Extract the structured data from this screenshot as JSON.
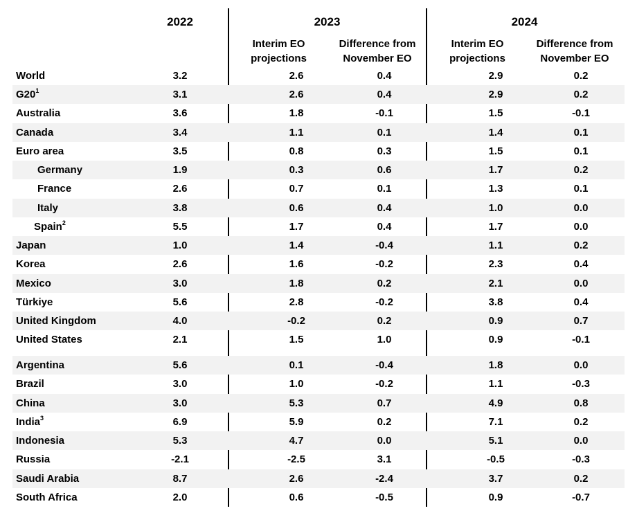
{
  "headers": {
    "year_2022": "2022",
    "year_2023": "2023",
    "year_2024": "2024",
    "interim_eo": "Interim EO projections",
    "difference": "Difference from November EO"
  },
  "rows": [
    {
      "name": "World",
      "sup": "",
      "v2022": "3.2",
      "p2023": "2.6",
      "d2023": "0.4",
      "p2024": "2.9",
      "d2024": "0.2"
    },
    {
      "name": "G20",
      "sup": "1",
      "v2022": "3.1",
      "p2023": "2.6",
      "d2023": "0.4",
      "p2024": "2.9",
      "d2024": "0.2"
    },
    {
      "name": "Australia",
      "sup": "",
      "v2022": "3.6",
      "p2023": "1.8",
      "d2023": "-0.1",
      "p2024": "1.5",
      "d2024": "-0.1"
    },
    {
      "name": "Canada",
      "sup": "",
      "v2022": "3.4",
      "p2023": "1.1",
      "d2023": "0.1",
      "p2024": "1.4",
      "d2024": "0.1"
    },
    {
      "name": "Euro area",
      "sup": "",
      "v2022": "3.5",
      "p2023": "0.8",
      "d2023": "0.3",
      "p2024": "1.5",
      "d2024": "0.1"
    },
    {
      "name": "Germany",
      "sup": "",
      "v2022": "1.9",
      "p2023": "0.3",
      "d2023": "0.6",
      "p2024": "1.7",
      "d2024": "0.2"
    },
    {
      "name": "France",
      "sup": "",
      "v2022": "2.6",
      "p2023": "0.7",
      "d2023": "0.1",
      "p2024": "1.3",
      "d2024": "0.1"
    },
    {
      "name": "Italy",
      "sup": "",
      "v2022": "3.8",
      "p2023": "0.6",
      "d2023": "0.4",
      "p2024": "1.0",
      "d2024": "0.0"
    },
    {
      "name": "Spain",
      "sup": "2",
      "v2022": "5.5",
      "p2023": "1.7",
      "d2023": "0.4",
      "p2024": "1.7",
      "d2024": "0.0"
    },
    {
      "name": "Japan",
      "sup": "",
      "v2022": "1.0",
      "p2023": "1.4",
      "d2023": "-0.4",
      "p2024": "1.1",
      "d2024": "0.2"
    },
    {
      "name": "Korea",
      "sup": "",
      "v2022": "2.6",
      "p2023": "1.6",
      "d2023": "-0.2",
      "p2024": "2.3",
      "d2024": "0.4"
    },
    {
      "name": "Mexico",
      "sup": "",
      "v2022": "3.0",
      "p2023": "1.8",
      "d2023": "0.2",
      "p2024": "2.1",
      "d2024": "0.0"
    },
    {
      "name": "Türkiye",
      "sup": "",
      "v2022": "5.6",
      "p2023": "2.8",
      "d2023": "-0.2",
      "p2024": "3.8",
      "d2024": "0.4"
    },
    {
      "name": "United Kingdom",
      "sup": "",
      "v2022": "4.0",
      "p2023": "-0.2",
      "d2023": "0.2",
      "p2024": "0.9",
      "d2024": "0.7"
    },
    {
      "name": "United States",
      "sup": "",
      "v2022": "2.1",
      "p2023": "1.5",
      "d2023": "1.0",
      "p2024": "0.9",
      "d2024": "-0.1"
    },
    {
      "name": "Argentina",
      "sup": "",
      "v2022": "5.6",
      "p2023": "0.1",
      "d2023": "-0.4",
      "p2024": "1.8",
      "d2024": "0.0"
    },
    {
      "name": "Brazil",
      "sup": "",
      "v2022": "3.0",
      "p2023": "1.0",
      "d2023": "-0.2",
      "p2024": "1.1",
      "d2024": "-0.3"
    },
    {
      "name": "China",
      "sup": "",
      "v2022": "3.0",
      "p2023": "5.3",
      "d2023": "0.7",
      "p2024": "4.9",
      "d2024": "0.8"
    },
    {
      "name": "India",
      "sup": "3",
      "v2022": "6.9",
      "p2023": "5.9",
      "d2023": "0.2",
      "p2024": "7.1",
      "d2024": "0.2"
    },
    {
      "name": "Indonesia",
      "sup": "",
      "v2022": "5.3",
      "p2023": "4.7",
      "d2023": "0.0",
      "p2024": "5.1",
      "d2024": "0.0"
    },
    {
      "name": "Russia",
      "sup": "",
      "v2022": "-2.1",
      "p2023": "-2.5",
      "d2023": "3.1",
      "p2024": "-0.5",
      "d2024": "-0.3"
    },
    {
      "name": "Saudi Arabia",
      "sup": "",
      "v2022": "8.7",
      "p2023": "2.6",
      "d2023": "-2.4",
      "p2024": "3.7",
      "d2024": "0.2"
    },
    {
      "name": "South Africa",
      "sup": "",
      "v2022": "2.0",
      "p2023": "0.6",
      "d2023": "-0.5",
      "p2024": "0.9",
      "d2024": "-0.7"
    }
  ]
}
